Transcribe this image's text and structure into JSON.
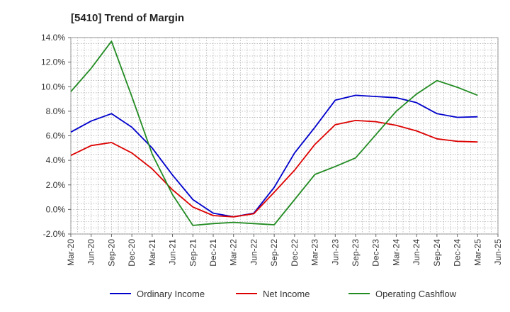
{
  "chart_data": {
    "type": "line",
    "title": "[5410]  Trend of Margin",
    "xlabel": "",
    "ylabel": "",
    "x": [
      "Mar-20",
      "Jun-20",
      "Sep-20",
      "Dec-20",
      "Mar-21",
      "Jun-21",
      "Sep-21",
      "Dec-21",
      "Mar-22",
      "Jun-22",
      "Sep-22",
      "Dec-22",
      "Mar-23",
      "Jun-23",
      "Sep-23",
      "Dec-23",
      "Mar-24",
      "Jun-24",
      "Sep-24",
      "Dec-24",
      "Mar-25",
      "Jun-25"
    ],
    "ylim": [
      -2.0,
      14.0
    ],
    "yticks": [
      -2.0,
      0.0,
      2.0,
      4.0,
      6.0,
      8.0,
      10.0,
      12.0,
      14.0
    ],
    "ytick_labels": [
      "-2.0%",
      "0.0%",
      "2.0%",
      "4.0%",
      "6.0%",
      "8.0%",
      "10.0%",
      "12.0%",
      "14.0%"
    ],
    "grid": true,
    "legend_position": "bottom",
    "series": [
      {
        "name": "Ordinary Income",
        "color": "#0000cc",
        "values": [
          6.3,
          7.2,
          7.8,
          6.7,
          5.0,
          2.8,
          0.8,
          -0.3,
          -0.6,
          -0.3,
          1.8,
          4.6,
          6.7,
          8.9,
          9.3,
          9.2,
          9.1,
          8.7,
          7.8,
          7.5,
          7.55,
          null
        ]
      },
      {
        "name": "Net Income",
        "color": "#dd0000",
        "values": [
          4.4,
          5.2,
          5.45,
          4.6,
          3.3,
          1.6,
          0.2,
          -0.5,
          -0.6,
          -0.35,
          1.4,
          3.2,
          5.3,
          6.9,
          7.25,
          7.15,
          6.85,
          6.4,
          5.75,
          5.55,
          5.5,
          null
        ]
      },
      {
        "name": "Operating Cashflow",
        "color": "#228b22",
        "values": [
          9.6,
          11.5,
          13.7,
          9.2,
          4.5,
          1.2,
          -1.3,
          -1.15,
          -1.05,
          -1.15,
          -1.25,
          0.8,
          2.85,
          3.5,
          4.2,
          6.1,
          8.0,
          9.4,
          10.5,
          9.95,
          9.3,
          null
        ]
      }
    ]
  }
}
